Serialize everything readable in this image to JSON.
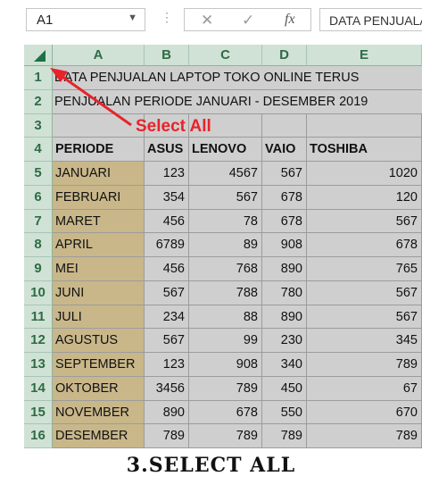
{
  "formula_bar": {
    "name_box": "A1",
    "name_dropdown_icon": "chevron-down-icon",
    "separator": "⋮",
    "cancel_icon": "✕",
    "enter_icon": "✓",
    "fx_label": "fx",
    "content": "DATA PENJUALAN LAPTOP TOKO ONLINE TERUS"
  },
  "columns": [
    "A",
    "B",
    "C",
    "D",
    "E"
  ],
  "rows": [
    "1",
    "2",
    "3",
    "4",
    "5",
    "6",
    "7",
    "8",
    "9",
    "10",
    "11",
    "12",
    "13",
    "14",
    "15",
    "16"
  ],
  "sheet": {
    "title1": "DATA PENJUALAN LAPTOP TOKO ONLINE TERUS",
    "title2": "PENJUALAN PERIODE JANUARI - DESEMBER 2019",
    "headers": [
      "PERIODE",
      "ASUS",
      "LENOVO",
      "VAIO",
      "TOSHIBA"
    ],
    "data": [
      [
        "JANUARI",
        "123",
        "4567",
        "567",
        "1020"
      ],
      [
        "FEBRUARI",
        "354",
        "567",
        "678",
        "120"
      ],
      [
        "MARET",
        "456",
        "78",
        "678",
        "567"
      ],
      [
        "APRIL",
        "6789",
        "89",
        "908",
        "678"
      ],
      [
        "MEI",
        "456",
        "768",
        "890",
        "765"
      ],
      [
        "JUNI",
        "567",
        "788",
        "780",
        "567"
      ],
      [
        "JULI",
        "234",
        "88",
        "890",
        "567"
      ],
      [
        "AGUSTUS",
        "567",
        "99",
        "230",
        "345"
      ],
      [
        "SEPTEMBER",
        "123",
        "908",
        "340",
        "789"
      ],
      [
        "OKTOBER",
        "3456",
        "789",
        "450",
        "67"
      ],
      [
        "NOVEMBER",
        "890",
        "678",
        "550",
        "670"
      ],
      [
        "DESEMBER",
        "789",
        "789",
        "789",
        "789"
      ]
    ]
  },
  "annotation": {
    "label": "Select All",
    "color": "#e8232a"
  },
  "caption": "3.SELECT ALL"
}
